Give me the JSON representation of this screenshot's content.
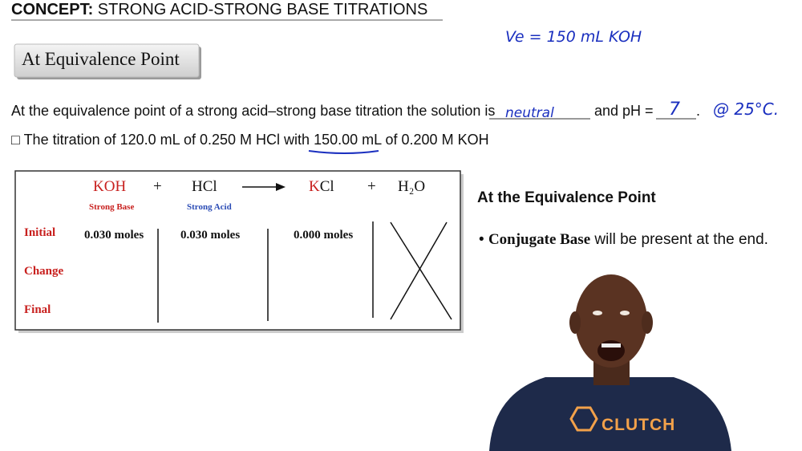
{
  "header": {
    "label": "CONCEPT:",
    "title": "STRONG ACID-STRONG BASE TITRATIONS"
  },
  "section_title": "At Equivalence Point",
  "annotation": "Ve = 150 mL KOH",
  "statement": {
    "text": "At the equivalence point of a strong acid–strong base titration the solution is",
    "answer_solution": "neutral",
    "text_ph": "and pH =",
    "answer_ph": "7",
    "end": ".",
    "note": "@ 25°C."
  },
  "problem": {
    "bullet": "□",
    "text_before": "The titration of 120.0 mL of 0.250 M HCl with",
    "highlight": "150.00 mL",
    "text_after": "of 0.200 M KOH"
  },
  "table": {
    "reaction": {
      "base": "KOH",
      "base_label": "Strong Base",
      "plus_1": "+",
      "acid": "HCl",
      "acid_label": "Strong Acid",
      "salt_cation": "K",
      "salt_anion": "Cl",
      "plus_2": "+",
      "water": "H₂O"
    },
    "rows": [
      {
        "label": "Initial",
        "values": [
          "0.030 moles",
          "0.030 moles",
          "0.000 moles"
        ]
      },
      {
        "label": "Change"
      },
      {
        "label": "Final"
      }
    ]
  },
  "notes": {
    "title": "At the Equivalence Point",
    "bullet": "•",
    "term": "Conjugate Base",
    "text": "will be present at the end."
  },
  "presenter": {
    "shirt_text": "CLUTCH"
  }
}
